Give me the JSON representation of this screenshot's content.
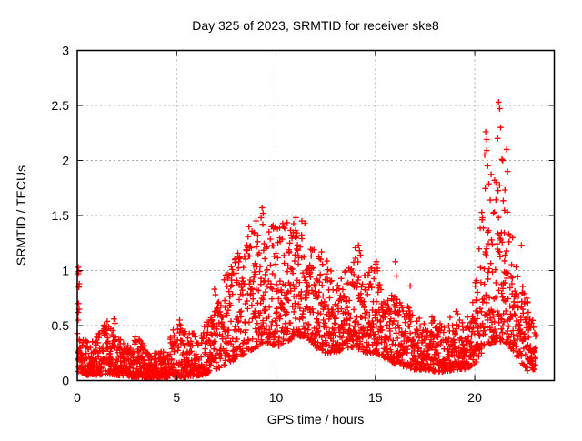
{
  "chart_data": {
    "type": "scatter",
    "title": "Day 325 of 2023, SRMTID for receiver ske8",
    "xlabel": "GPS time / hours",
    "ylabel": "SRMTID / TECUs",
    "xlim": [
      0,
      24
    ],
    "ylim": [
      0,
      3
    ],
    "xticks": [
      0,
      5,
      10,
      15,
      20
    ],
    "yticks": [
      0,
      0.5,
      1,
      1.5,
      2,
      2.5,
      3
    ],
    "grid": true,
    "legend": "none",
    "marker": "plus",
    "marker_color": "#ff0000",
    "grid_color": "#a9a9a9",
    "axis_color": "#000000",
    "background": "#ffffff",
    "series_name": "SRMTID",
    "sampling": {
      "points_per_bin": 55,
      "bin_hours": 0.5,
      "skew": 1.7,
      "seed": 325
    },
    "envelope": [
      [
        0.0,
        0.08,
        0.45
      ],
      [
        0.5,
        0.05,
        0.35
      ],
      [
        1.0,
        0.05,
        0.42
      ],
      [
        1.5,
        0.06,
        0.55
      ],
      [
        2.0,
        0.05,
        0.4
      ],
      [
        2.5,
        0.04,
        0.32
      ],
      [
        3.0,
        0.03,
        0.45
      ],
      [
        3.5,
        0.02,
        0.28
      ],
      [
        4.0,
        0.02,
        0.25
      ],
      [
        4.5,
        0.02,
        0.3
      ],
      [
        5.0,
        0.03,
        0.55
      ],
      [
        5.5,
        0.03,
        0.45
      ],
      [
        6.0,
        0.04,
        0.42
      ],
      [
        6.5,
        0.06,
        0.55
      ],
      [
        7.0,
        0.1,
        0.7
      ],
      [
        7.5,
        0.15,
        1.0
      ],
      [
        8.0,
        0.2,
        1.15
      ],
      [
        8.5,
        0.25,
        1.35
      ],
      [
        9.0,
        0.3,
        1.57
      ],
      [
        9.5,
        0.35,
        1.45
      ],
      [
        10.0,
        0.3,
        1.4
      ],
      [
        10.5,
        0.35,
        1.45
      ],
      [
        11.0,
        0.4,
        1.48
      ],
      [
        11.5,
        0.4,
        1.4
      ],
      [
        12.0,
        0.3,
        1.3
      ],
      [
        12.5,
        0.25,
        1.15
      ],
      [
        13.0,
        0.25,
        0.9
      ],
      [
        13.5,
        0.3,
        1.0
      ],
      [
        14.0,
        0.3,
        1.25
      ],
      [
        14.5,
        0.25,
        0.95
      ],
      [
        15.0,
        0.25,
        1.08
      ],
      [
        15.5,
        0.2,
        0.75
      ],
      [
        16.0,
        0.15,
        0.8
      ],
      [
        16.5,
        0.12,
        0.7
      ],
      [
        17.0,
        0.1,
        0.6
      ],
      [
        17.5,
        0.1,
        0.55
      ],
      [
        18.0,
        0.08,
        0.6
      ],
      [
        18.5,
        0.08,
        0.5
      ],
      [
        19.0,
        0.1,
        0.65
      ],
      [
        19.5,
        0.1,
        0.5
      ],
      [
        20.0,
        0.15,
        0.85
      ],
      [
        20.5,
        0.3,
        1.85
      ],
      [
        21.0,
        0.35,
        1.9
      ],
      [
        21.5,
        0.35,
        1.8
      ],
      [
        22.0,
        0.25,
        1.1
      ],
      [
        22.5,
        0.12,
        0.85
      ],
      [
        23.0,
        0.1,
        0.5,
        8,
        0.08
      ]
    ],
    "outliers": [
      [
        0.05,
        1.03
      ],
      [
        0.07,
        0.99
      ],
      [
        0.05,
        0.97
      ],
      [
        0.1,
        0.88
      ],
      [
        0.08,
        0.85
      ],
      [
        0.06,
        0.7
      ],
      [
        0.09,
        0.65
      ],
      [
        0.05,
        0.62
      ],
      [
        0.04,
        0.55
      ],
      [
        1.85,
        0.56
      ],
      [
        1.9,
        0.52
      ],
      [
        5.15,
        0.55
      ],
      [
        5.2,
        0.5
      ],
      [
        6.9,
        0.83
      ],
      [
        6.95,
        0.78
      ],
      [
        9.3,
        1.57
      ],
      [
        9.35,
        1.52
      ],
      [
        9.25,
        1.48
      ],
      [
        11.0,
        1.48
      ],
      [
        11.3,
        1.45
      ],
      [
        11.45,
        1.43
      ],
      [
        14.15,
        1.23
      ],
      [
        14.2,
        1.18
      ],
      [
        14.25,
        1.14
      ],
      [
        15.05,
        1.08
      ],
      [
        15.1,
        1.02
      ],
      [
        16.0,
        1.08
      ],
      [
        16.05,
        0.95
      ],
      [
        16.75,
        0.86
      ],
      [
        20.5,
        2.05
      ],
      [
        20.55,
        2.26
      ],
      [
        20.6,
        2.19
      ],
      [
        20.6,
        2.09
      ],
      [
        20.65,
        1.95
      ],
      [
        21.15,
        2.2
      ],
      [
        21.2,
        2.53
      ],
      [
        21.25,
        2.47
      ],
      [
        21.3,
        2.3
      ],
      [
        21.37,
        2.01
      ],
      [
        21.4,
        2.0
      ],
      [
        21.6,
        2.1
      ],
      [
        21.65,
        1.9
      ],
      [
        21.9,
        1.3
      ],
      [
        22.35,
        1.23
      ],
      [
        22.65,
        0.09
      ]
    ]
  }
}
